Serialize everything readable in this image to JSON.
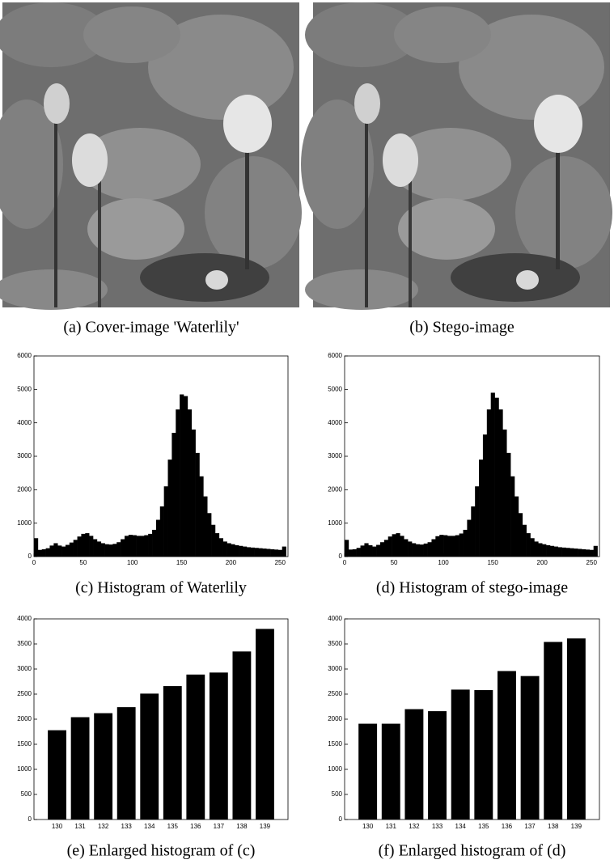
{
  "images": [
    {
      "caption": "(a) Cover-image 'Waterlily'"
    },
    {
      "caption": "(b) Stego-image"
    }
  ],
  "chart_data": [
    {
      "type": "histogram",
      "caption": "(c) Histogram of Waterlily",
      "color": "#000000",
      "bins": [
        0,
        4,
        8,
        12,
        16,
        20,
        24,
        28,
        32,
        36,
        40,
        44,
        48,
        52,
        56,
        60,
        64,
        68,
        72,
        76,
        80,
        84,
        88,
        92,
        96,
        100,
        104,
        108,
        112,
        116,
        120,
        124,
        128,
        132,
        136,
        140,
        144,
        148,
        152,
        156,
        160,
        164,
        168,
        172,
        176,
        180,
        184,
        188,
        192,
        196,
        200,
        204,
        208,
        212,
        216,
        220,
        224,
        228,
        232,
        236,
        240,
        244,
        248,
        252,
        256
      ],
      "values": [
        550,
        200,
        220,
        250,
        330,
        400,
        330,
        300,
        350,
        420,
        500,
        600,
        680,
        700,
        620,
        520,
        450,
        400,
        370,
        360,
        380,
        430,
        520,
        620,
        650,
        640,
        620,
        620,
        640,
        680,
        800,
        1100,
        1500,
        2100,
        2900,
        3700,
        4400,
        4850,
        4800,
        4400,
        3800,
        3100,
        2400,
        1800,
        1300,
        950,
        700,
        550,
        450,
        400,
        370,
        340,
        320,
        300,
        280,
        270,
        260,
        250,
        240,
        230,
        220,
        210,
        200,
        300
      ],
      "xlim": [
        0,
        258
      ],
      "xticks": [
        0,
        50,
        100,
        150,
        200,
        250
      ],
      "ylim": [
        0,
        6000
      ],
      "yticks": [
        0,
        1000,
        2000,
        3000,
        4000,
        5000,
        6000
      ]
    },
    {
      "type": "histogram",
      "caption": "(d) Histogram of stego-image",
      "color": "#000000",
      "bins": [
        0,
        4,
        8,
        12,
        16,
        20,
        24,
        28,
        32,
        36,
        40,
        44,
        48,
        52,
        56,
        60,
        64,
        68,
        72,
        76,
        80,
        84,
        88,
        92,
        96,
        100,
        104,
        108,
        112,
        116,
        120,
        124,
        128,
        132,
        136,
        140,
        144,
        148,
        152,
        156,
        160,
        164,
        168,
        172,
        176,
        180,
        184,
        188,
        192,
        196,
        200,
        204,
        208,
        212,
        216,
        220,
        224,
        228,
        232,
        236,
        240,
        244,
        248,
        252,
        256
      ],
      "values": [
        500,
        210,
        220,
        260,
        330,
        400,
        340,
        300,
        350,
        430,
        500,
        600,
        670,
        700,
        620,
        520,
        450,
        400,
        370,
        360,
        390,
        430,
        520,
        610,
        650,
        640,
        620,
        620,
        640,
        690,
        800,
        1100,
        1500,
        2100,
        2900,
        3650,
        4400,
        4900,
        4750,
        4400,
        3800,
        3100,
        2400,
        1800,
        1300,
        950,
        700,
        550,
        450,
        400,
        370,
        340,
        320,
        300,
        280,
        270,
        260,
        250,
        240,
        230,
        220,
        210,
        200,
        320
      ],
      "xlim": [
        0,
        258
      ],
      "xticks": [
        0,
        50,
        100,
        150,
        200,
        250
      ],
      "ylim": [
        0,
        6000
      ],
      "yticks": [
        0,
        1000,
        2000,
        3000,
        4000,
        5000,
        6000
      ]
    },
    {
      "type": "bar",
      "caption": "(e) Enlarged histogram of (c)",
      "color": "#000000",
      "categories": [
        "130",
        "131",
        "132",
        "133",
        "134",
        "135",
        "136",
        "137",
        "138",
        "139"
      ],
      "values": [
        1780,
        2040,
        2120,
        2240,
        2510,
        2660,
        2890,
        2930,
        3350,
        3800
      ],
      "ylim": [
        0,
        4000
      ],
      "yticks": [
        0,
        500,
        1000,
        1500,
        2000,
        2500,
        3000,
        3500,
        4000
      ]
    },
    {
      "type": "bar",
      "caption": "(f) Enlarged histogram of (d)",
      "color": "#000000",
      "categories": [
        "130",
        "131",
        "132",
        "133",
        "134",
        "135",
        "136",
        "137",
        "138",
        "139"
      ],
      "values": [
        1910,
        1910,
        2200,
        2160,
        2590,
        2580,
        2960,
        2860,
        3540,
        3610
      ],
      "ylim": [
        0,
        4000
      ],
      "yticks": [
        0,
        500,
        1000,
        1500,
        2000,
        2500,
        3000,
        3500,
        4000
      ]
    }
  ]
}
